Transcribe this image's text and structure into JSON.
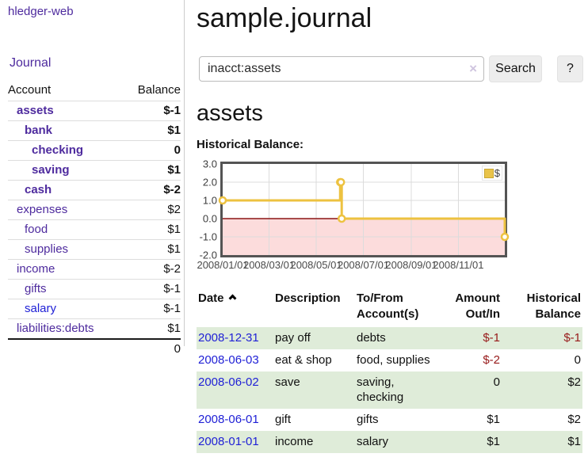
{
  "colors": {
    "link_purple": "#4e2b9e",
    "link_blue": "#2021d6",
    "negative_strong": "#971a1a",
    "negative_muted": "#bd7f7f",
    "row_stripe_green": "#dfecd9",
    "button_gray": "#ededed",
    "sidebar_divider": "#cccccc"
  },
  "app": {
    "title": "hledger-web"
  },
  "nav": {
    "journal": "Journal"
  },
  "sidebar": {
    "header": {
      "account": "Account",
      "balance": "Balance"
    },
    "accounts": [
      {
        "name": "assets",
        "balance": "$-1",
        "depth": 1,
        "emphasis": true,
        "tone": "strong-negative"
      },
      {
        "name": "bank",
        "balance": "$1",
        "depth": 2,
        "emphasis": true,
        "tone": "normal"
      },
      {
        "name": "checking",
        "balance": "0",
        "depth": 3,
        "emphasis": true,
        "tone": "normal"
      },
      {
        "name": "saving",
        "balance": "$1",
        "depth": 3,
        "emphasis": true,
        "tone": "normal"
      },
      {
        "name": "cash",
        "balance": "$-2",
        "depth": 2,
        "emphasis": true,
        "tone": "strong-negative"
      },
      {
        "name": "expenses",
        "balance": "$2",
        "depth": 1,
        "emphasis": false,
        "tone": "normal"
      },
      {
        "name": "food",
        "balance": "$1",
        "depth": 2,
        "emphasis": false,
        "tone": "normal"
      },
      {
        "name": "supplies",
        "balance": "$1",
        "depth": 2,
        "emphasis": false,
        "tone": "normal"
      },
      {
        "name": "income",
        "balance": "$-2",
        "depth": 1,
        "emphasis": false,
        "tone": "muted-negative"
      },
      {
        "name": "gifts",
        "balance": "$-1",
        "depth": 2,
        "emphasis": false,
        "tone": "muted-negative"
      },
      {
        "name": "salary",
        "balance": "$-1",
        "depth": 2,
        "emphasis": false,
        "tone": "muted-negative",
        "link_color": "blue"
      },
      {
        "name": "liabilities:debts",
        "balance": "$1",
        "depth": 1,
        "emphasis": false,
        "tone": "normal"
      }
    ],
    "total": "0"
  },
  "header": {
    "title": "sample.journal"
  },
  "search": {
    "value": "inacct:assets",
    "clear_icon": "×",
    "search_button": "Search",
    "help_button": "?"
  },
  "content": {
    "account_heading": "assets",
    "chart_title": "Historical Balance:"
  },
  "chart_data": {
    "type": "line",
    "step": true,
    "title": "Historical Balance",
    "x_range": [
      "2008-01-01",
      "2008-12-31"
    ],
    "y_range": [
      -2,
      3
    ],
    "x_ticks": [
      "2008/01/01",
      "2008/03/01",
      "2008/05/01",
      "2008/07/01",
      "2008/09/01",
      "2008/11/01"
    ],
    "y_ticks": [
      3.0,
      2.0,
      1.0,
      0.0,
      -1.0,
      -2.0
    ],
    "grid": true,
    "legend_position": "top-right",
    "series": [
      {
        "name": "$",
        "color": "#edc240",
        "points": [
          [
            "2008-01-01",
            1
          ],
          [
            "2008-06-01",
            2
          ],
          [
            "2008-06-02",
            2
          ],
          [
            "2008-06-03",
            0
          ],
          [
            "2008-12-31",
            -1
          ]
        ]
      }
    ],
    "grid_color": "#dcdcdc",
    "zero_line_color": "#8b1515",
    "negative_fill": "#fcdcdc",
    "border_color": "#545454"
  },
  "transactions": {
    "headers": {
      "date": "Date",
      "description": "Description",
      "tofrom_line1": "To/From",
      "tofrom_line2": "Account(s)",
      "amount_line1": "Amount",
      "amount_line2": "Out/In",
      "balance_line1": "Historical",
      "balance_line2": "Balance"
    },
    "rows": [
      {
        "date": "2008-12-31",
        "description": "pay off",
        "accounts": "debts",
        "amount": "$-1",
        "balance": "$-1"
      },
      {
        "date": "2008-06-03",
        "description": "eat & shop",
        "accounts": "food, supplies",
        "amount": "$-2",
        "balance": "0"
      },
      {
        "date": "2008-06-02",
        "description": "save",
        "accounts": "saving, checking",
        "amount": "0",
        "balance": "$2"
      },
      {
        "date": "2008-06-01",
        "description": "gift",
        "accounts": "gifts",
        "amount": "$1",
        "balance": "$2"
      },
      {
        "date": "2008-01-01",
        "description": "income",
        "accounts": "salary",
        "amount": "$1",
        "balance": "$1"
      }
    ]
  }
}
